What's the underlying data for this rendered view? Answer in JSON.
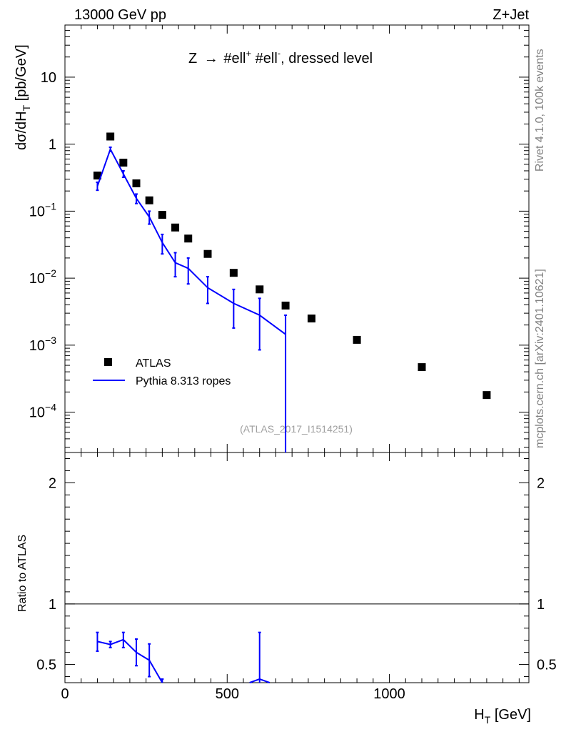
{
  "header": {
    "left": "13000 GeV pp",
    "right": "Z+Jet"
  },
  "side_labels": {
    "rivet": "Rivet 4.1.0,  100k events",
    "mcplots": "mcplots.cern.ch [arXiv:2401.10621]"
  },
  "watermark": "(ATLAS_2017_I1514251)",
  "chart_data": {
    "type": "scatter",
    "title": "Z → #ell⁺ #ell⁻, dressed level",
    "title_parts": {
      "a": "Z ",
      "arrow": "→",
      "b": " #ell",
      "sup1": "+",
      "c": " #ell",
      "sup2": "-",
      "d": ", dressed level"
    },
    "xlabel": "H_T [GeV]",
    "xlabel_parts": {
      "main": "H",
      "sub": "T",
      "unit": " [GeV]"
    },
    "ylabel": "dσ/dH_T [pb/GeV]",
    "ylabel_parts": {
      "main": "dσ/dH",
      "sub": "T",
      "unit": " [pb/GeV]"
    },
    "xlim": [
      0,
      1430
    ],
    "ylim_log": [
      2.5e-05,
      60
    ],
    "x_ticks": [
      "0",
      "500",
      "1000"
    ],
    "x_tick_values": [
      0,
      500,
      1000
    ],
    "y_ticks": [
      {
        "value": 10,
        "base": "10",
        "exp": ""
      },
      {
        "value": 1,
        "base": "1",
        "exp": ""
      },
      {
        "value": 0.1,
        "base": "10",
        "exp": "−1"
      },
      {
        "value": 0.01,
        "base": "10",
        "exp": "−2"
      },
      {
        "value": 0.001,
        "base": "10",
        "exp": "−3"
      },
      {
        "value": 0.0001,
        "base": "10",
        "exp": "−4"
      }
    ],
    "legend": {
      "atlas": "ATLAS",
      "pythia": "Pythia 8.313 ropes"
    },
    "series": [
      {
        "name": "ATLAS",
        "style": "marker",
        "color": "#000000",
        "x": [
          100,
          140,
          180,
          220,
          260,
          300,
          340,
          380,
          440,
          520,
          600,
          680,
          760,
          900,
          1100,
          1300
        ],
        "y": [
          0.34,
          1.3,
          0.53,
          0.26,
          0.145,
          0.088,
          0.057,
          0.039,
          0.023,
          0.012,
          0.0068,
          0.0039,
          0.0025,
          0.0012,
          0.00047,
          0.00018
        ]
      },
      {
        "name": "Pythia 8.313 ropes",
        "style": "line",
        "color": "#0000ff",
        "x": [
          100,
          140,
          180,
          220,
          260,
          300,
          340,
          380,
          440,
          520,
          600,
          680
        ],
        "y": [
          0.235,
          0.84,
          0.36,
          0.155,
          0.082,
          0.034,
          0.017,
          0.014,
          0.0072,
          0.0042,
          0.0028,
          0.00145
        ],
        "yerr_lo": [
          0.205,
          0.78,
          0.32,
          0.13,
          0.064,
          0.023,
          0.0105,
          0.0082,
          0.0042,
          0.0018,
          0.00085,
          1e-05
        ],
        "yerr_hi": [
          0.27,
          0.9,
          0.4,
          0.18,
          0.1,
          0.045,
          0.024,
          0.02,
          0.0105,
          0.0068,
          0.005,
          0.0028
        ]
      }
    ],
    "ratio": {
      "ylabel": "Ratio to ATLAS",
      "ylim": [
        0.35,
        2.25
      ],
      "y_ticks": [
        "0.5",
        "1",
        "2"
      ],
      "y_tick_values": [
        0.5,
        1,
        2
      ],
      "reference": 1,
      "series": {
        "name": "Pythia 8.313 ropes",
        "x": [
          100,
          140,
          180,
          220,
          260,
          300,
          600
        ],
        "y": [
          0.69,
          0.665,
          0.705,
          0.6,
          0.535,
          0.34,
          0.38
        ],
        "yerr_lo": [
          0.61,
          0.64,
          0.64,
          0.49,
          0.4,
          0.3,
          0.3
        ],
        "yerr_hi": [
          0.765,
          0.69,
          0.765,
          0.71,
          0.67,
          0.38,
          0.765
        ],
        "segments": [
          [
            0,
            5
          ],
          [
            6,
            6
          ]
        ]
      }
    }
  }
}
